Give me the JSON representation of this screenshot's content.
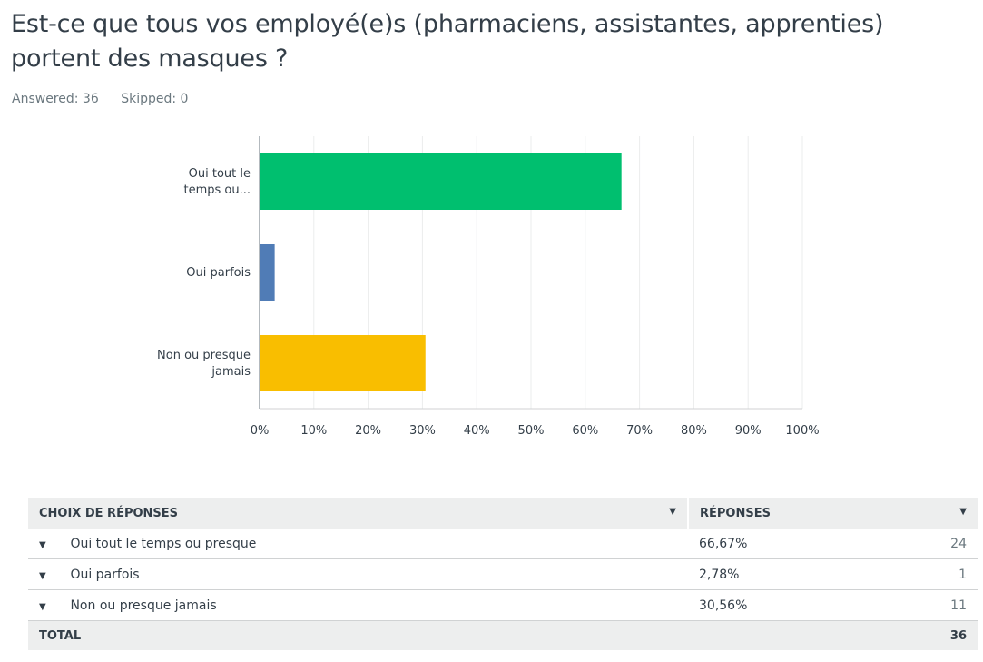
{
  "question": {
    "title": "Est-ce que tous vos employé(e)s (pharmaciens, assistantes, apprenties) portent des masques ?",
    "answered": "Answered: 36",
    "skipped": "Skipped: 0"
  },
  "chart_data": {
    "type": "bar",
    "orientation": "horizontal",
    "categories": [
      [
        "Oui tout le",
        "temps ou..."
      ],
      [
        "Oui parfois"
      ],
      [
        "Non ou presque",
        "jamais"
      ]
    ],
    "values": [
      66.67,
      2.78,
      30.56
    ],
    "colors": [
      "#00bf6f",
      "#507cb6",
      "#f9be00"
    ],
    "xlim": [
      0,
      100
    ],
    "xticks": [
      "0%",
      "10%",
      "20%",
      "30%",
      "40%",
      "50%",
      "60%",
      "70%",
      "80%",
      "90%",
      "100%"
    ],
    "grid": true,
    "legend": "none"
  },
  "table": {
    "headers": {
      "choice": "CHOIX DE RÉPONSES",
      "responses": "RÉPONSES"
    },
    "rows": [
      {
        "choice": "Oui tout le temps ou presque",
        "percent": "66,67%",
        "count": "24"
      },
      {
        "choice": "Oui parfois",
        "percent": "2,78%",
        "count": "1"
      },
      {
        "choice": "Non ou presque jamais",
        "percent": "30,56%",
        "count": "11"
      }
    ],
    "total": {
      "label": "TOTAL",
      "count": "36"
    }
  }
}
